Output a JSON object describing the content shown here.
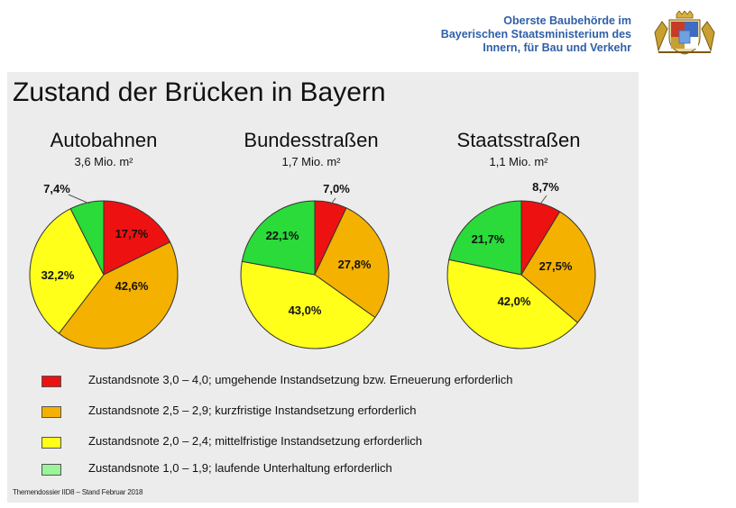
{
  "header": {
    "org_lines": [
      "Oberste Baubehörde im",
      "Bayerischen Staatsministerium des",
      "Innern, für Bau und Verkehr"
    ]
  },
  "title": "Zustand der Brücken in Bayern",
  "colors": {
    "red": "#ee1111",
    "orange": "#f5b100",
    "yellow": "#ffff1a",
    "green": "#2adb3a",
    "legend_green": "#9af59a",
    "org_blue": "#2f5fa8"
  },
  "chart_data": [
    {
      "type": "pie",
      "title": "Autobahnen",
      "subtitle": "3,6 Mio.  m²",
      "categories": [
        "Zustandsnote 3,0 – 4,0",
        "Zustandsnote 2,5 – 2,9",
        "Zustandsnote 2,0 – 2,4",
        "Zustandsnote 1,0 – 1,9"
      ],
      "values": [
        17.7,
        42.6,
        32.2,
        7.4
      ],
      "labels": [
        "17,7%",
        "42,6%",
        "32,2%",
        "7,4%"
      ]
    },
    {
      "type": "pie",
      "title": "Bundesstraßen",
      "subtitle": "1,7 Mio.  m²",
      "categories": [
        "Zustandsnote 3,0 – 4,0",
        "Zustandsnote 2,5 – 2,9",
        "Zustandsnote 2,0 – 2,4",
        "Zustandsnote 1,0 – 1,9"
      ],
      "values": [
        7.0,
        27.8,
        43.0,
        22.1
      ],
      "labels": [
        "7,0%",
        "27,8%",
        "43,0%",
        "22,1%"
      ]
    },
    {
      "type": "pie",
      "title": "Staatsstraßen",
      "subtitle": "1,1 Mio.  m²",
      "categories": [
        "Zustandsnote 3,0 – 4,0",
        "Zustandsnote 2,5 – 2,9",
        "Zustandsnote 2,0 – 2,4",
        "Zustandsnote 1,0 – 1,9"
      ],
      "values": [
        8.7,
        27.5,
        42.0,
        21.7
      ],
      "labels": [
        "8,7%",
        "27,5%",
        "42,0%",
        "21,7%"
      ]
    }
  ],
  "legend": [
    {
      "text": "Zustandsnote 3,0 – 4,0; umgehende Instandsetzung bzw. Erneuerung erforderlich",
      "color": "#ee1111"
    },
    {
      "text": "Zustandsnote 2,5 – 2,9; kurzfristige Instandsetzung erforderlich",
      "color": "#f5b100"
    },
    {
      "text": "Zustandsnote 2,0 – 2,4; mittelfristige Instandsetzung erforderlich",
      "color": "#ffff1a"
    },
    {
      "text": "Zustandsnote 1,0 – 1,9; laufende Unterhaltung erforderlich",
      "color": "#9af59a"
    }
  ],
  "footnote": "Themendossier IID8 – Stand Februar 2018",
  "crest_icon": "bavarian-coat-of-arms"
}
